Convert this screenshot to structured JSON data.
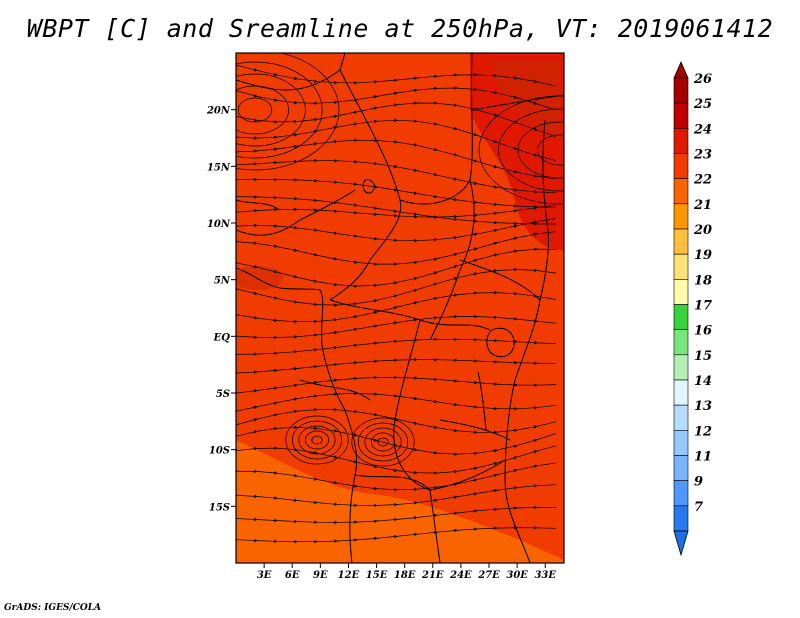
{
  "title": "WBPT [C] and Sreamline at 250hPa, VT: 2019061412",
  "footer": "GrADS: IGES/COLA",
  "map": {
    "variable": "Wet-bulb potential temperature [C] with streamlines",
    "level": "250hPa",
    "lon_range": [
      0,
      35
    ],
    "lat_range": [
      -20,
      25
    ],
    "lat_ticks": [
      {
        "value": 20,
        "label": "20N"
      },
      {
        "value": 15,
        "label": "15N"
      },
      {
        "value": 10,
        "label": "10N"
      },
      {
        "value": 5,
        "label": "5N"
      },
      {
        "value": 0,
        "label": "EQ"
      },
      {
        "value": -5,
        "label": "5S"
      },
      {
        "value": -10,
        "label": "10S"
      },
      {
        "value": -15,
        "label": "15S"
      }
    ],
    "lon_ticks": [
      {
        "value": 3,
        "label": "3E"
      },
      {
        "value": 6,
        "label": "6E"
      },
      {
        "value": 9,
        "label": "9E"
      },
      {
        "value": 12,
        "label": "12E"
      },
      {
        "value": 15,
        "label": "15E"
      },
      {
        "value": 18,
        "label": "18E"
      },
      {
        "value": 21,
        "label": "21E"
      },
      {
        "value": 24,
        "label": "24E"
      },
      {
        "value": 27,
        "label": "27E"
      },
      {
        "value": 30,
        "label": "30E"
      },
      {
        "value": 33,
        "label": "33E"
      }
    ]
  },
  "colorbar": {
    "levels": [
      {
        "label": "26",
        "color": "#a50000"
      },
      {
        "label": "25",
        "color": "#c00000"
      },
      {
        "label": "24",
        "color": "#e11800"
      },
      {
        "label": "23",
        "color": "#f03c00"
      },
      {
        "label": "22",
        "color": "#fa6400"
      },
      {
        "label": "21",
        "color": "#ff9600"
      },
      {
        "label": "20",
        "color": "#ffbe3c"
      },
      {
        "label": "19",
        "color": "#ffe178"
      },
      {
        "label": "18",
        "color": "#fffaaa"
      },
      {
        "label": "17",
        "color": "#37d23c"
      },
      {
        "label": "16",
        "color": "#78e678"
      },
      {
        "label": "15",
        "color": "#b4f0b4"
      },
      {
        "label": "14",
        "color": "#e1f5ff"
      },
      {
        "label": "13",
        "color": "#b4dcff"
      },
      {
        "label": "12",
        "color": "#96c8ff"
      },
      {
        "label": "11",
        "color": "#78b4ff"
      },
      {
        "label": "9",
        "color": "#5096ff"
      },
      {
        "label": "7",
        "color": "#2878f0"
      }
    ],
    "bottom_color": "#1e6ee6"
  },
  "colors": {
    "field_main": "#f03c00",
    "field_dark": "#e11800",
    "field_light": "#fa6400",
    "field_darkest": "#c82800"
  }
}
